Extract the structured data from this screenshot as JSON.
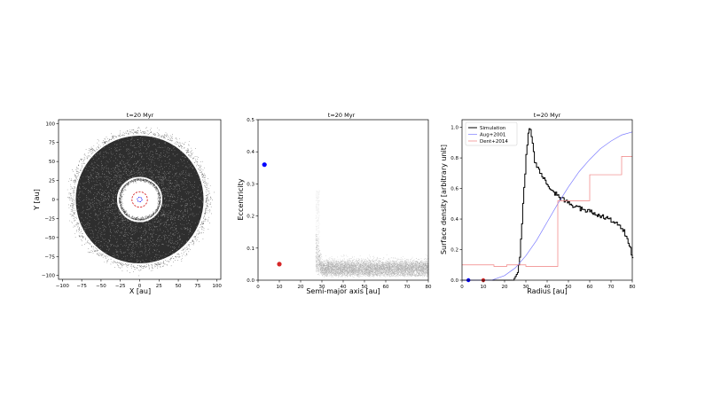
{
  "chart_data": [
    {
      "type": "scatter",
      "title": "t=20 Myr",
      "xlabel": "X [au]",
      "ylabel": "Y [au]",
      "xlim": [
        -105,
        105
      ],
      "ylim": [
        -105,
        105
      ],
      "xticks": [
        -100,
        -75,
        -50,
        -25,
        0,
        25,
        50,
        75,
        100
      ],
      "yticks": [
        -100,
        -75,
        -50,
        -25,
        0,
        25,
        50,
        75,
        100
      ],
      "xtick_labels": [
        "−100",
        "−75",
        "−50",
        "−25",
        "0",
        "25",
        "50",
        "75",
        "100"
      ],
      "ytick_labels": [
        "−100",
        "−75",
        "−50",
        "−25",
        "0",
        "25",
        "50",
        "75",
        "100"
      ],
      "disk": {
        "inner_radius_au": 27,
        "outer_radius_au": 85,
        "color": "#000000"
      },
      "planet_orbit_radius_au": 10,
      "planet_orbit_color": "#d62728",
      "inner_orbit_radius_au": 3,
      "inner_orbit_color": "#0000ff",
      "grid": false
    },
    {
      "type": "scatter",
      "title": "t=20 Myr",
      "xlabel": "Semi-major axis [au]",
      "ylabel": "Eccentricity",
      "xlim": [
        0,
        80
      ],
      "ylim": [
        0,
        0.5
      ],
      "xticks": [
        0,
        10,
        20,
        30,
        40,
        50,
        60,
        70,
        80
      ],
      "yticks": [
        0.0,
        0.1,
        0.2,
        0.3,
        0.4,
        0.5
      ],
      "xtick_labels": [
        "0",
        "10",
        "20",
        "30",
        "40",
        "50",
        "60",
        "70",
        "80"
      ],
      "ytick_labels": [
        "0.0",
        "0.1",
        "0.2",
        "0.3",
        "0.4",
        "0.5"
      ],
      "planets": [
        {
          "a": 3,
          "e": 0.36,
          "color": "#0000ff"
        },
        {
          "a": 10,
          "e": 0.05,
          "color": "#d62728"
        }
      ],
      "particles": {
        "a_min": 27,
        "a_max": 80,
        "typical_e": 0.03,
        "color": "#000000"
      },
      "grid": false
    },
    {
      "type": "line",
      "title": "t=20 Myr",
      "xlabel": "Radius [au]",
      "ylabel": "Surface density [arbitrary unit]",
      "xlim": [
        0,
        80
      ],
      "ylim": [
        0,
        1.05
      ],
      "xticks": [
        0,
        10,
        20,
        30,
        40,
        50,
        60,
        70,
        80
      ],
      "yticks": [
        0.0,
        0.2,
        0.4,
        0.6,
        0.8,
        1.0
      ],
      "xtick_labels": [
        "0",
        "10",
        "20",
        "30",
        "40",
        "50",
        "60",
        "70",
        "80"
      ],
      "ytick_labels": [
        "0.0",
        "0.2",
        "0.4",
        "0.6",
        "0.8",
        "1.0"
      ],
      "legend": "top-left",
      "series": [
        {
          "name": "Simulation",
          "color": "#000000",
          "x": [
            0,
            24,
            26,
            27,
            28,
            29,
            30,
            31,
            32,
            33,
            34,
            35,
            36,
            38,
            40,
            45,
            50,
            55,
            60,
            65,
            70,
            74,
            76,
            78,
            80
          ],
          "y": [
            0.0,
            0.0,
            0.05,
            0.15,
            0.38,
            0.6,
            0.82,
            0.97,
            1.0,
            0.9,
            0.78,
            0.74,
            0.72,
            0.67,
            0.62,
            0.55,
            0.5,
            0.47,
            0.45,
            0.42,
            0.39,
            0.36,
            0.32,
            0.25,
            0.15
          ]
        },
        {
          "name": "Aug+2001",
          "color": "#7b7bff",
          "x": [
            0,
            14,
            20,
            25,
            30,
            35,
            40,
            45,
            50,
            55,
            60,
            65,
            70,
            75,
            80
          ],
          "y": [
            0.0,
            0.0,
            0.03,
            0.08,
            0.16,
            0.26,
            0.38,
            0.5,
            0.61,
            0.71,
            0.79,
            0.86,
            0.91,
            0.95,
            0.97
          ]
        },
        {
          "name": "Dent+2014",
          "color": "#f08080",
          "step": true,
          "x": [
            0,
            15,
            15,
            21,
            21,
            30,
            30,
            45,
            45,
            60,
            60,
            75,
            75,
            80
          ],
          "y": [
            0.1,
            0.1,
            0.09,
            0.09,
            0.1,
            0.1,
            0.09,
            0.09,
            0.52,
            0.52,
            0.69,
            0.69,
            0.81,
            0.81
          ]
        }
      ],
      "planet_markers": [
        {
          "x": 3,
          "color": "#0000ff"
        },
        {
          "x": 10,
          "color": "#d62728"
        }
      ],
      "grid": false
    }
  ]
}
